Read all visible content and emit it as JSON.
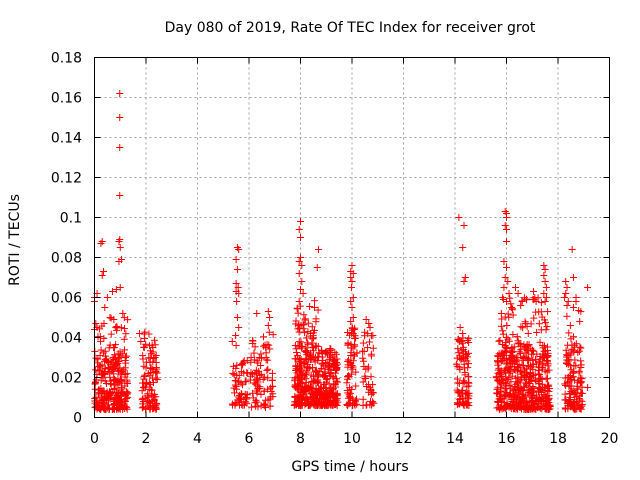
{
  "chart_data": {
    "type": "scatter",
    "title": "Day 080 of 2019, Rate Of TEC Index for receiver grot",
    "xlabel": "GPS time / hours",
    "ylabel": "ROTI / TECUs",
    "xlim": [
      0,
      20
    ],
    "ylim": [
      0,
      0.18
    ],
    "xticks": [
      "0",
      "2",
      "4",
      "6",
      "8",
      "10",
      "12",
      "14",
      "16",
      "18",
      "20"
    ],
    "yticks": [
      "0",
      "0.02",
      "0.04",
      "0.06",
      "0.08",
      "0.1",
      "0.12",
      "0.14",
      "0.16",
      "0.18"
    ],
    "grid": true,
    "marker": "plus",
    "color": "#ff0000",
    "series": [
      {
        "clusters": [
          {
            "x": [
              0.0,
              1.3
            ],
            "ylow": 0.004,
            "yhigh": 0.03,
            "n": 260
          },
          {
            "x": [
              0.0,
              1.3
            ],
            "ylow": 0.03,
            "yhigh": 0.05,
            "n": 40
          },
          {
            "x": [
              1.85,
              2.45
            ],
            "ylow": 0.004,
            "yhigh": 0.035,
            "n": 90
          },
          {
            "x": [
              1.9,
              2.4
            ],
            "ylow": 0.035,
            "yhigh": 0.046,
            "n": 12
          },
          {
            "x": [
              5.35,
              5.95
            ],
            "ylow": 0.006,
            "yhigh": 0.03,
            "n": 60
          },
          {
            "x": [
              6.05,
              6.5
            ],
            "ylow": 0.005,
            "yhigh": 0.04,
            "n": 45
          },
          {
            "x": [
              6.55,
              6.95
            ],
            "ylow": 0.005,
            "yhigh": 0.045,
            "n": 40
          },
          {
            "x": [
              7.75,
              9.45
            ],
            "ylow": 0.006,
            "yhigh": 0.035,
            "n": 420
          },
          {
            "x": [
              7.8,
              8.7
            ],
            "ylow": 0.035,
            "yhigh": 0.06,
            "n": 50
          },
          {
            "x": [
              9.8,
              10.2
            ],
            "ylow": 0.006,
            "yhigh": 0.045,
            "n": 70
          },
          {
            "x": [
              10.4,
              10.85
            ],
            "ylow": 0.006,
            "yhigh": 0.045,
            "n": 45
          },
          {
            "x": [
              14.05,
              14.55
            ],
            "ylow": 0.006,
            "yhigh": 0.04,
            "n": 90
          },
          {
            "x": [
              15.6,
              17.7
            ],
            "ylow": 0.004,
            "yhigh": 0.035,
            "n": 460
          },
          {
            "x": [
              15.7,
              17.6
            ],
            "ylow": 0.035,
            "yhigh": 0.06,
            "n": 70
          },
          {
            "x": [
              18.25,
              18.95
            ],
            "ylow": 0.004,
            "yhigh": 0.035,
            "n": 110
          },
          {
            "x": [
              18.3,
              18.9
            ],
            "ylow": 0.035,
            "yhigh": 0.055,
            "n": 14
          }
        ],
        "points": [
          [
            0.98,
            0.162
          ],
          [
            0.98,
            0.15
          ],
          [
            0.98,
            0.135
          ],
          [
            0.98,
            0.111
          ],
          [
            0.98,
            0.089
          ],
          [
            0.95,
            0.088
          ],
          [
            1.0,
            0.085
          ],
          [
            0.95,
            0.078
          ],
          [
            1.05,
            0.079
          ],
          [
            1.0,
            0.065
          ],
          [
            0.25,
            0.087
          ],
          [
            0.3,
            0.088
          ],
          [
            0.35,
            0.073
          ],
          [
            0.3,
            0.071
          ],
          [
            0.0,
            0.06
          ],
          [
            0.0,
            0.058
          ],
          [
            0.1,
            0.062
          ],
          [
            0.5,
            0.06
          ],
          [
            0.4,
            0.055
          ],
          [
            0.7,
            0.063
          ],
          [
            0.85,
            0.064
          ],
          [
            0.05,
            0.047
          ],
          [
            0.0,
            0.044
          ],
          [
            0.1,
            0.045
          ],
          [
            0.6,
            0.05
          ],
          [
            0.75,
            0.049
          ],
          [
            1.1,
            0.052
          ],
          [
            1.75,
            0.042
          ],
          [
            1.8,
            0.038
          ],
          [
            5.55,
            0.085
          ],
          [
            5.6,
            0.084
          ],
          [
            5.5,
            0.079
          ],
          [
            5.55,
            0.074
          ],
          [
            5.5,
            0.067
          ],
          [
            5.58,
            0.065
          ],
          [
            5.5,
            0.063
          ],
          [
            5.6,
            0.062
          ],
          [
            5.52,
            0.058
          ],
          [
            5.55,
            0.05
          ],
          [
            5.6,
            0.045
          ],
          [
            5.48,
            0.041
          ],
          [
            6.75,
            0.053
          ],
          [
            6.8,
            0.05
          ],
          [
            6.3,
            0.052
          ],
          [
            6.75,
            0.046
          ],
          [
            8.0,
            0.098
          ],
          [
            7.95,
            0.094
          ],
          [
            8.0,
            0.09
          ],
          [
            8.0,
            0.08
          ],
          [
            7.95,
            0.078
          ],
          [
            8.05,
            0.076
          ],
          [
            7.95,
            0.072
          ],
          [
            8.05,
            0.068
          ],
          [
            8.0,
            0.064
          ],
          [
            8.1,
            0.062
          ],
          [
            7.95,
            0.058
          ],
          [
            8.7,
            0.084
          ],
          [
            8.65,
            0.075
          ],
          [
            10.0,
            0.076
          ],
          [
            9.95,
            0.073
          ],
          [
            10.05,
            0.072
          ],
          [
            9.95,
            0.07
          ],
          [
            10.0,
            0.068
          ],
          [
            9.98,
            0.065
          ],
          [
            10.05,
            0.06
          ],
          [
            9.95,
            0.058
          ],
          [
            10.0,
            0.055
          ],
          [
            10.05,
            0.05
          ],
          [
            9.95,
            0.048
          ],
          [
            10.55,
            0.049
          ],
          [
            10.65,
            0.047
          ],
          [
            14.15,
            0.1
          ],
          [
            14.35,
            0.096
          ],
          [
            14.3,
            0.085
          ],
          [
            14.4,
            0.07
          ],
          [
            14.35,
            0.068
          ],
          [
            14.2,
            0.045
          ],
          [
            14.3,
            0.042
          ],
          [
            15.95,
            0.103
          ],
          [
            16.0,
            0.102
          ],
          [
            16.0,
            0.1
          ],
          [
            15.95,
            0.096
          ],
          [
            16.0,
            0.094
          ],
          [
            16.0,
            0.088
          ],
          [
            15.9,
            0.078
          ],
          [
            16.0,
            0.075
          ],
          [
            15.95,
            0.07
          ],
          [
            16.05,
            0.068
          ],
          [
            15.9,
            0.065
          ],
          [
            16.1,
            0.062
          ],
          [
            15.85,
            0.06
          ],
          [
            16.0,
            0.058
          ],
          [
            16.2,
            0.055
          ],
          [
            15.8,
            0.052
          ],
          [
            16.35,
            0.065
          ],
          [
            16.45,
            0.062
          ],
          [
            16.6,
            0.058
          ],
          [
            16.55,
            0.056
          ],
          [
            17.05,
            0.063
          ],
          [
            17.1,
            0.06
          ],
          [
            17.15,
            0.058
          ],
          [
            17.45,
            0.076
          ],
          [
            17.5,
            0.074
          ],
          [
            17.45,
            0.071
          ],
          [
            17.5,
            0.068
          ],
          [
            17.55,
            0.065
          ],
          [
            17.45,
            0.062
          ],
          [
            17.55,
            0.06
          ],
          [
            17.5,
            0.058
          ],
          [
            18.3,
            0.068
          ],
          [
            18.35,
            0.065
          ],
          [
            18.3,
            0.062
          ],
          [
            18.25,
            0.06
          ],
          [
            18.4,
            0.058
          ],
          [
            18.35,
            0.056
          ],
          [
            18.55,
            0.084
          ],
          [
            18.6,
            0.07
          ],
          [
            18.7,
            0.06
          ],
          [
            18.7,
            0.058
          ],
          [
            18.6,
            0.055
          ],
          [
            19.15,
            0.065
          ],
          [
            18.45,
            0.012
          ],
          [
            18.5,
            0.013
          ],
          [
            18.95,
            0.012
          ],
          [
            19.15,
            0.015
          ],
          [
            5.35,
            0.038
          ],
          [
            5.5,
            0.036
          ],
          [
            6.4,
            0.03
          ],
          [
            6.45,
            0.026
          ],
          [
            2.35,
            0.03
          ],
          [
            2.4,
            0.025
          ]
        ]
      }
    ]
  }
}
